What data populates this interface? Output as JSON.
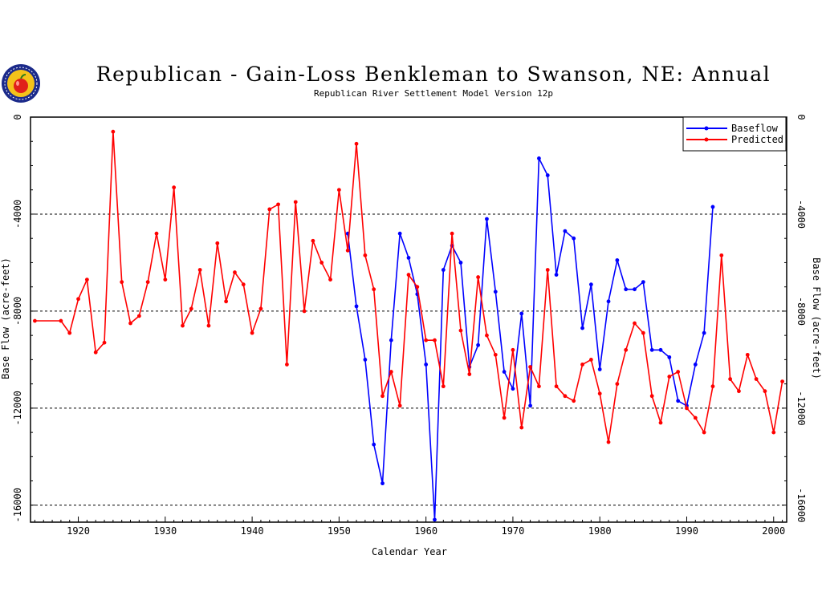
{
  "page": {
    "title": "Republican - Gain-Loss Benkleman to Swanson, NE: Annual",
    "subtitle": "Republican River Settlement Model Version 12p",
    "logo_icon": "apple-seal-logo"
  },
  "chart_data": {
    "type": "line",
    "title": "Republican - Gain-Loss Benkleman to Swanson, NE: Annual",
    "subtitle": "Republican River Settlement Model Version 12p",
    "xlabel": "Calendar Year",
    "ylabel": "Base Flow (acre-feet)",
    "xlim": [
      1914.5,
      2001.5
    ],
    "ylim": [
      -16700,
      0
    ],
    "xticks": [
      1920,
      1930,
      1940,
      1950,
      1960,
      1970,
      1980,
      1990,
      2000
    ],
    "yticks": [
      0,
      -4000,
      -8000,
      -12000,
      -16000
    ],
    "ytick_labels": [
      "0",
      "-4000",
      "-8000",
      "-12000",
      "-16000"
    ],
    "gridlines_y": [
      -4000,
      -8000,
      -12000,
      -16000
    ],
    "grid_style": "dashed horizontal",
    "legend_position": "top-right",
    "series": [
      {
        "name": "Baseflow",
        "color": "#0000ff",
        "points": [
          [
            1951,
            -4800
          ],
          [
            1952,
            -7800
          ],
          [
            1953,
            -10000
          ],
          [
            1954,
            -13500
          ],
          [
            1955,
            -15100
          ],
          [
            1956,
            -9200
          ],
          [
            1957,
            -4800
          ],
          [
            1958,
            -5800
          ],
          [
            1959,
            -7300
          ],
          [
            1960,
            -10200
          ],
          [
            1961,
            -16600
          ],
          [
            1962,
            -6300
          ],
          [
            1963,
            -5300
          ],
          [
            1964,
            -6000
          ],
          [
            1965,
            -10300
          ],
          [
            1966,
            -9400
          ],
          [
            1967,
            -4200
          ],
          [
            1968,
            -7200
          ],
          [
            1969,
            -10500
          ],
          [
            1970,
            -11200
          ],
          [
            1971,
            -8100
          ],
          [
            1972,
            -11900
          ],
          [
            1973,
            -1700
          ],
          [
            1974,
            -2400
          ],
          [
            1975,
            -6500
          ],
          [
            1976,
            -4700
          ],
          [
            1977,
            -5000
          ],
          [
            1978,
            -8700
          ],
          [
            1979,
            -6900
          ],
          [
            1980,
            -10400
          ],
          [
            1981,
            -7600
          ],
          [
            1982,
            -5900
          ],
          [
            1983,
            -7100
          ],
          [
            1984,
            -7100
          ],
          [
            1985,
            -6800
          ],
          [
            1986,
            -9600
          ],
          [
            1987,
            -9600
          ],
          [
            1988,
            -9900
          ],
          [
            1989,
            -11700
          ],
          [
            1990,
            -11900
          ],
          [
            1991,
            -10200
          ],
          [
            1992,
            -8900
          ],
          [
            1993,
            -3700
          ]
        ]
      },
      {
        "name": "Predicted",
        "color": "#ff0000",
        "points": [
          [
            1915,
            -8400
          ],
          [
            1918,
            -8400
          ],
          [
            1919,
            -8900
          ],
          [
            1920,
            -7500
          ],
          [
            1921,
            -6700
          ],
          [
            1922,
            -9700
          ],
          [
            1923,
            -9300
          ],
          [
            1924,
            -600
          ],
          [
            1925,
            -6800
          ],
          [
            1926,
            -8500
          ],
          [
            1927,
            -8200
          ],
          [
            1928,
            -6800
          ],
          [
            1929,
            -4800
          ],
          [
            1930,
            -6700
          ],
          [
            1931,
            -2900
          ],
          [
            1932,
            -8600
          ],
          [
            1933,
            -7900
          ],
          [
            1934,
            -6300
          ],
          [
            1935,
            -8600
          ],
          [
            1936,
            -5200
          ],
          [
            1937,
            -7600
          ],
          [
            1938,
            -6400
          ],
          [
            1939,
            -6900
          ],
          [
            1940,
            -8900
          ],
          [
            1941,
            -7900
          ],
          [
            1942,
            -3800
          ],
          [
            1943,
            -3600
          ],
          [
            1944,
            -10200
          ],
          [
            1945,
            -3500
          ],
          [
            1946,
            -8000
          ],
          [
            1947,
            -5100
          ],
          [
            1948,
            -6000
          ],
          [
            1949,
            -6700
          ],
          [
            1950,
            -3000
          ],
          [
            1951,
            -5500
          ],
          [
            1952,
            -1100
          ],
          [
            1953,
            -5700
          ],
          [
            1954,
            -7100
          ],
          [
            1955,
            -11500
          ],
          [
            1956,
            -10500
          ],
          [
            1957,
            -11900
          ],
          [
            1958,
            -6500
          ],
          [
            1959,
            -7000
          ],
          [
            1960,
            -9200
          ],
          [
            1961,
            -9200
          ],
          [
            1962,
            -11100
          ],
          [
            1963,
            -4800
          ],
          [
            1964,
            -8800
          ],
          [
            1965,
            -10600
          ],
          [
            1966,
            -6600
          ],
          [
            1967,
            -9000
          ],
          [
            1968,
            -9800
          ],
          [
            1969,
            -12400
          ],
          [
            1970,
            -9600
          ],
          [
            1971,
            -12800
          ],
          [
            1972,
            -10300
          ],
          [
            1973,
            -11100
          ],
          [
            1974,
            -6300
          ],
          [
            1975,
            -11100
          ],
          [
            1976,
            -11500
          ],
          [
            1977,
            -11700
          ],
          [
            1978,
            -10200
          ],
          [
            1979,
            -10000
          ],
          [
            1980,
            -11400
          ],
          [
            1981,
            -13400
          ],
          [
            1982,
            -11000
          ],
          [
            1983,
            -9600
          ],
          [
            1984,
            -8500
          ],
          [
            1985,
            -8900
          ],
          [
            1986,
            -11500
          ],
          [
            1987,
            -12600
          ],
          [
            1988,
            -10700
          ],
          [
            1989,
            -10500
          ],
          [
            1990,
            -12000
          ],
          [
            1991,
            -12400
          ],
          [
            1992,
            -13000
          ],
          [
            1993,
            -11100
          ],
          [
            1994,
            -5700
          ],
          [
            1995,
            -10800
          ],
          [
            1996,
            -11300
          ],
          [
            1997,
            -9800
          ],
          [
            1998,
            -10800
          ],
          [
            1999,
            -11300
          ],
          [
            2000,
            -13000
          ],
          [
            2001,
            -10900
          ]
        ]
      }
    ]
  }
}
